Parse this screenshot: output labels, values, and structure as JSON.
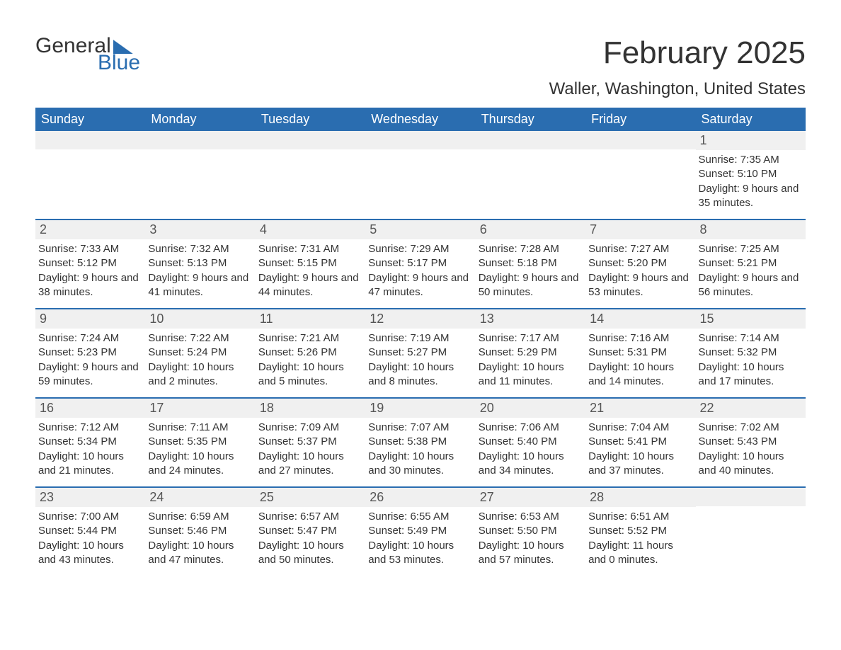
{
  "logo": {
    "text1": "General",
    "text2": "Blue"
  },
  "title": "February 2025",
  "location": "Waller, Washington, United States",
  "colors": {
    "accent": "#2a6db0",
    "header_text": "#ffffff",
    "daynum_bg": "#f0f0f0",
    "body_text": "#333333"
  },
  "weekdays": [
    "Sunday",
    "Monday",
    "Tuesday",
    "Wednesday",
    "Thursday",
    "Friday",
    "Saturday"
  ],
  "weeks": [
    [
      {
        "n": "",
        "lines": []
      },
      {
        "n": "",
        "lines": []
      },
      {
        "n": "",
        "lines": []
      },
      {
        "n": "",
        "lines": []
      },
      {
        "n": "",
        "lines": []
      },
      {
        "n": "",
        "lines": []
      },
      {
        "n": "1",
        "lines": [
          "Sunrise: 7:35 AM",
          "Sunset: 5:10 PM",
          "Daylight: 9 hours and 35 minutes."
        ]
      }
    ],
    [
      {
        "n": "2",
        "lines": [
          "Sunrise: 7:33 AM",
          "Sunset: 5:12 PM",
          "Daylight: 9 hours and 38 minutes."
        ]
      },
      {
        "n": "3",
        "lines": [
          "Sunrise: 7:32 AM",
          "Sunset: 5:13 PM",
          "Daylight: 9 hours and 41 minutes."
        ]
      },
      {
        "n": "4",
        "lines": [
          "Sunrise: 7:31 AM",
          "Sunset: 5:15 PM",
          "Daylight: 9 hours and 44 minutes."
        ]
      },
      {
        "n": "5",
        "lines": [
          "Sunrise: 7:29 AM",
          "Sunset: 5:17 PM",
          "Daylight: 9 hours and 47 minutes."
        ]
      },
      {
        "n": "6",
        "lines": [
          "Sunrise: 7:28 AM",
          "Sunset: 5:18 PM",
          "Daylight: 9 hours and 50 minutes."
        ]
      },
      {
        "n": "7",
        "lines": [
          "Sunrise: 7:27 AM",
          "Sunset: 5:20 PM",
          "Daylight: 9 hours and 53 minutes."
        ]
      },
      {
        "n": "8",
        "lines": [
          "Sunrise: 7:25 AM",
          "Sunset: 5:21 PM",
          "Daylight: 9 hours and 56 minutes."
        ]
      }
    ],
    [
      {
        "n": "9",
        "lines": [
          "Sunrise: 7:24 AM",
          "Sunset: 5:23 PM",
          "Daylight: 9 hours and 59 minutes."
        ]
      },
      {
        "n": "10",
        "lines": [
          "Sunrise: 7:22 AM",
          "Sunset: 5:24 PM",
          "Daylight: 10 hours and 2 minutes."
        ]
      },
      {
        "n": "11",
        "lines": [
          "Sunrise: 7:21 AM",
          "Sunset: 5:26 PM",
          "Daylight: 10 hours and 5 minutes."
        ]
      },
      {
        "n": "12",
        "lines": [
          "Sunrise: 7:19 AM",
          "Sunset: 5:27 PM",
          "Daylight: 10 hours and 8 minutes."
        ]
      },
      {
        "n": "13",
        "lines": [
          "Sunrise: 7:17 AM",
          "Sunset: 5:29 PM",
          "Daylight: 10 hours and 11 minutes."
        ]
      },
      {
        "n": "14",
        "lines": [
          "Sunrise: 7:16 AM",
          "Sunset: 5:31 PM",
          "Daylight: 10 hours and 14 minutes."
        ]
      },
      {
        "n": "15",
        "lines": [
          "Sunrise: 7:14 AM",
          "Sunset: 5:32 PM",
          "Daylight: 10 hours and 17 minutes."
        ]
      }
    ],
    [
      {
        "n": "16",
        "lines": [
          "Sunrise: 7:12 AM",
          "Sunset: 5:34 PM",
          "Daylight: 10 hours and 21 minutes."
        ]
      },
      {
        "n": "17",
        "lines": [
          "Sunrise: 7:11 AM",
          "Sunset: 5:35 PM",
          "Daylight: 10 hours and 24 minutes."
        ]
      },
      {
        "n": "18",
        "lines": [
          "Sunrise: 7:09 AM",
          "Sunset: 5:37 PM",
          "Daylight: 10 hours and 27 minutes."
        ]
      },
      {
        "n": "19",
        "lines": [
          "Sunrise: 7:07 AM",
          "Sunset: 5:38 PM",
          "Daylight: 10 hours and 30 minutes."
        ]
      },
      {
        "n": "20",
        "lines": [
          "Sunrise: 7:06 AM",
          "Sunset: 5:40 PM",
          "Daylight: 10 hours and 34 minutes."
        ]
      },
      {
        "n": "21",
        "lines": [
          "Sunrise: 7:04 AM",
          "Sunset: 5:41 PM",
          "Daylight: 10 hours and 37 minutes."
        ]
      },
      {
        "n": "22",
        "lines": [
          "Sunrise: 7:02 AM",
          "Sunset: 5:43 PM",
          "Daylight: 10 hours and 40 minutes."
        ]
      }
    ],
    [
      {
        "n": "23",
        "lines": [
          "Sunrise: 7:00 AM",
          "Sunset: 5:44 PM",
          "Daylight: 10 hours and 43 minutes."
        ]
      },
      {
        "n": "24",
        "lines": [
          "Sunrise: 6:59 AM",
          "Sunset: 5:46 PM",
          "Daylight: 10 hours and 47 minutes."
        ]
      },
      {
        "n": "25",
        "lines": [
          "Sunrise: 6:57 AM",
          "Sunset: 5:47 PM",
          "Daylight: 10 hours and 50 minutes."
        ]
      },
      {
        "n": "26",
        "lines": [
          "Sunrise: 6:55 AM",
          "Sunset: 5:49 PM",
          "Daylight: 10 hours and 53 minutes."
        ]
      },
      {
        "n": "27",
        "lines": [
          "Sunrise: 6:53 AM",
          "Sunset: 5:50 PM",
          "Daylight: 10 hours and 57 minutes."
        ]
      },
      {
        "n": "28",
        "lines": [
          "Sunrise: 6:51 AM",
          "Sunset: 5:52 PM",
          "Daylight: 11 hours and 0 minutes."
        ]
      },
      {
        "n": "",
        "lines": []
      }
    ]
  ]
}
